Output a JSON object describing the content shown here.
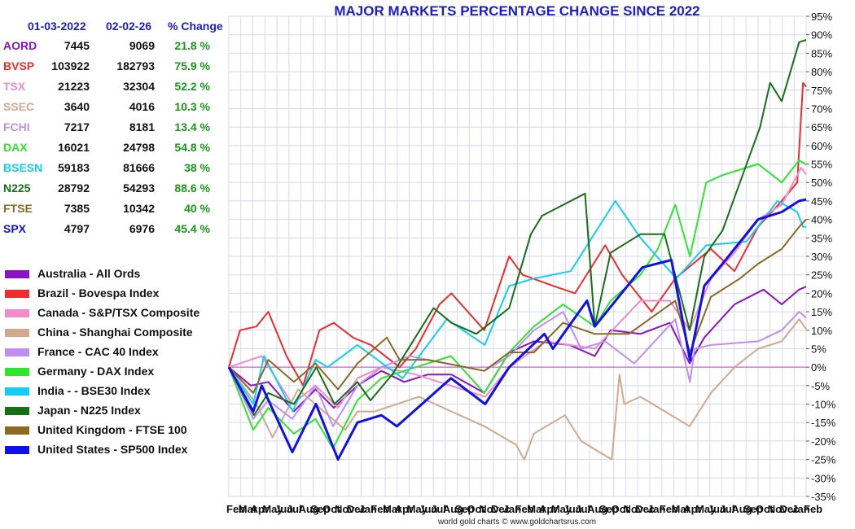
{
  "chart_data": {
    "type": "line",
    "title": "MAJOR MARKETS PERCENTAGE CHANGE SINCE 2022",
    "xlabel": "",
    "ylabel": "",
    "ylim": [
      -35,
      95
    ],
    "y_ticks": [
      "95%",
      "90%",
      "85%",
      "80%",
      "75%",
      "70%",
      "65%",
      "60%",
      "55%",
      "50%",
      "45%",
      "40%",
      "35%",
      "30%",
      "25%",
      "20%",
      "15%",
      "10%",
      "5%",
      "0%",
      "-5%",
      "-10%",
      "-15%",
      "-20%",
      "-25%",
      "-30%",
      "-35%"
    ],
    "x_ticks": [
      "Feb",
      "Mar",
      "Apr",
      "May",
      "Jun",
      "Jul",
      "Aug",
      "Sep",
      "Oct",
      "Nov",
      "Dec",
      "Jan",
      "Feb",
      "Mar",
      "Apr",
      "May",
      "Jun",
      "Jul",
      "Aug",
      "Sep",
      "Oct",
      "Nov",
      "Dec",
      "Jan",
      "Feb",
      "Mar",
      "Apr",
      "May",
      "Jun",
      "Jul",
      "Aug",
      "Sep",
      "Oct",
      "Nov",
      "Dec",
      "Jan",
      "Feb",
      "Mar",
      "Apr",
      "May",
      "Jun",
      "Jul",
      "Aug",
      "Sep",
      "Oct",
      "Nov",
      "Dec",
      "Jan",
      "Feb"
    ],
    "x_range": [
      "2022-01-03",
      "2026-02-02"
    ],
    "grid": true,
    "table_headers": [
      "01-03-2022",
      "02-02-26",
      "% Change"
    ],
    "table": [
      {
        "symbol": "AORD",
        "start": "7445",
        "end": "9069",
        "change": "21.8 %",
        "color": "#8a14c2"
      },
      {
        "symbol": "BVSP",
        "start": "103922",
        "end": "182793",
        "change": "75.9 %",
        "color": "#f02c2c"
      },
      {
        "symbol": "TSX",
        "start": "21223",
        "end": "32304",
        "change": "52.2 %",
        "color": "#f08cc8"
      },
      {
        "symbol": "SSEC",
        "start": "3640",
        "end": "4016",
        "change": "10.3 %",
        "color": "#d2a88e"
      },
      {
        "symbol": "FCHI",
        "start": "7217",
        "end": "8181",
        "change": "13.4 %",
        "color": "#bf8ef0"
      },
      {
        "symbol": "DAX",
        "start": "16021",
        "end": "24798",
        "change": "54.8 %",
        "color": "#2ee62e"
      },
      {
        "symbol": "BSESN",
        "start": "59183",
        "end": "81666",
        "change": "38 %",
        "color": "#14cdf5"
      },
      {
        "symbol": "N225",
        "start": "28792",
        "end": "54293",
        "change": "88.6 %",
        "color": "#167016"
      },
      {
        "symbol": "FTSE",
        "start": "7385",
        "end": "10342",
        "change": "40 %",
        "color": "#8c6a22"
      },
      {
        "symbol": "SPX",
        "start": "4797",
        "end": "6976",
        "change": "45.4 %",
        "color": "#1010e8"
      }
    ],
    "series": [
      {
        "name": "Australia - All Ords",
        "color": "#8a14c2",
        "x": [
          "2022-01-03",
          "2022-03-01",
          "2022-04-15",
          "2022-06-20",
          "2022-08-15",
          "2022-10-01",
          "2022-12-01",
          "2023-02-01",
          "2023-04-01",
          "2023-06-01",
          "2023-08-01",
          "2023-10-25",
          "2023-12-28",
          "2024-03-01",
          "2024-06-01",
          "2024-08-05",
          "2024-09-15",
          "2024-12-01",
          "2025-02-15",
          "2025-04-07",
          "2025-05-15",
          "2025-08-01",
          "2025-10-15",
          "2025-12-01",
          "2026-01-15",
          "2026-02-02"
        ],
        "y": [
          0,
          -5,
          -4,
          -12,
          -6,
          -11,
          -5,
          -1,
          -4,
          -2,
          -2,
          -7,
          4,
          7,
          6,
          3,
          10,
          9,
          12,
          1,
          8,
          17,
          21,
          17,
          21,
          21.8
        ]
      },
      {
        "name": "Brazil - Bovespa Index",
        "color": "#f02c2c",
        "x": [
          "2022-01-03",
          "2022-02-01",
          "2022-03-15",
          "2022-04-15",
          "2022-06-01",
          "2022-07-14",
          "2022-08-25",
          "2022-10-01",
          "2022-11-20",
          "2023-01-05",
          "2023-03-20",
          "2023-05-01",
          "2023-07-01",
          "2023-08-01",
          "2023-10-25",
          "2023-12-28",
          "2024-02-01",
          "2024-04-20",
          "2024-06-15",
          "2024-09-01",
          "2024-10-15",
          "2024-12-30",
          "2025-03-01",
          "2025-06-01",
          "2025-08-01",
          "2025-10-01",
          "2025-12-01",
          "2026-01-10",
          "2026-01-25",
          "2026-02-02"
        ],
        "y": [
          0,
          10,
          11,
          15,
          3,
          -5,
          10,
          12,
          8,
          6,
          0,
          5,
          17,
          20,
          10,
          30,
          25,
          22,
          20,
          33,
          25,
          15,
          24,
          32,
          26,
          38,
          45,
          50,
          77,
          75.9
        ]
      },
      {
        "name": "Canada - S&P/TSX Composite",
        "color": "#f08cc8",
        "x": [
          "2022-01-03",
          "2022-03-29",
          "2022-06-16",
          "2022-08-15",
          "2022-10-12",
          "2022-12-01",
          "2023-02-01",
          "2023-05-01",
          "2023-10-27",
          "2023-12-28",
          "2024-04-01",
          "2024-08-05",
          "2024-12-01",
          "2025-02-15",
          "2025-04-07",
          "2025-06-01",
          "2025-08-01",
          "2025-10-01",
          "2025-12-01",
          "2026-01-20",
          "2026-02-02"
        ],
        "y": [
          0,
          3,
          -10,
          -5,
          -11,
          -3,
          0,
          -2,
          -8,
          0,
          7,
          5,
          18,
          18,
          10,
          24,
          31,
          40,
          44,
          54,
          52.2
        ]
      },
      {
        "name": "China - Shanghai Composite",
        "color": "#d2a88e",
        "x": [
          "2022-01-03",
          "2022-03-15",
          "2022-04-26",
          "2022-07-01",
          "2022-10-31",
          "2022-12-01",
          "2023-01-15",
          "2023-05-09",
          "2023-08-01",
          "2023-10-25",
          "2024-01-15",
          "2024-02-05",
          "2024-03-01",
          "2024-05-20",
          "2024-07-01",
          "2024-09-18",
          "2024-10-08",
          "2024-10-20",
          "2024-12-01",
          "2025-04-07",
          "2025-06-01",
          "2025-08-01",
          "2025-10-01",
          "2025-12-01",
          "2026-01-15",
          "2026-02-02"
        ],
        "y": [
          0,
          -10,
          -19,
          -6,
          -17,
          -12,
          -12,
          -8,
          -12,
          -16,
          -21,
          -25,
          -18,
          -13,
          -20,
          -25,
          -2,
          -10,
          -8,
          -16,
          -7,
          0,
          5,
          7,
          13,
          10.3
        ]
      },
      {
        "name": "France - CAC 40 Index",
        "color": "#bf8ef0",
        "x": [
          "2022-01-03",
          "2022-03-07",
          "2022-04-15",
          "2022-06-16",
          "2022-08-15",
          "2022-09-29",
          "2022-12-01",
          "2023-02-01",
          "2023-04-15",
          "2023-06-01",
          "2023-10-25",
          "2023-12-28",
          "2024-03-01",
          "2024-05-15",
          "2024-07-01",
          "2024-09-01",
          "2024-11-15",
          "2025-03-01",
          "2025-04-08",
          "2025-04-20",
          "2025-06-01",
          "2025-10-01",
          "2025-12-01",
          "2026-01-15",
          "2026-02-02"
        ],
        "y": [
          0,
          -14,
          -9,
          -14,
          -5,
          -16,
          -5,
          0,
          3,
          2,
          -1,
          3,
          10,
          15,
          5,
          7,
          1,
          13,
          -4,
          5,
          6,
          7,
          10,
          15,
          13.4
        ]
      },
      {
        "name": "Germany - DAX Index",
        "color": "#2ee62e",
        "x": [
          "2022-01-03",
          "2022-03-07",
          "2022-04-15",
          "2022-06-20",
          "2022-08-15",
          "2022-09-29",
          "2022-12-01",
          "2023-02-01",
          "2023-04-01",
          "2023-07-31",
          "2023-10-25",
          "2023-12-28",
          "2024-03-01",
          "2024-05-15",
          "2024-08-05",
          "2024-09-15",
          "2024-12-01",
          "2025-01-15",
          "2025-03-01",
          "2025-04-08",
          "2025-05-20",
          "2025-07-01",
          "2025-10-01",
          "2025-12-01",
          "2026-01-15",
          "2026-02-02"
        ],
        "y": [
          0,
          -17,
          -11,
          -18,
          -14,
          -22,
          -9,
          -3,
          -1,
          3,
          -7,
          4,
          11,
          17,
          11,
          18,
          25,
          32,
          44,
          30,
          50,
          52,
          55,
          50,
          56,
          54.8
        ]
      },
      {
        "name": "India -  - BSE30 Index",
        "color": "#14cdf5",
        "x": [
          "2022-01-03",
          "2022-03-07",
          "2022-04-04",
          "2022-06-17",
          "2022-08-15",
          "2022-09-15",
          "2022-12-01",
          "2023-03-28",
          "2023-07-20",
          "2023-10-26",
          "2023-12-28",
          "2024-03-01",
          "2024-06-04",
          "2024-09-27",
          "2024-12-01",
          "2025-03-04",
          "2025-05-20",
          "2025-09-01",
          "2025-11-20",
          "2026-01-10",
          "2026-01-25",
          "2026-02-02"
        ],
        "y": [
          0,
          -10,
          3,
          -12,
          2,
          0,
          6,
          -3,
          13,
          6,
          22,
          24,
          26,
          45,
          35,
          24,
          33,
          34,
          45,
          42,
          38,
          38
        ]
      },
      {
        "name": "Japan - N225 Index",
        "color": "#167016",
        "x": [
          "2022-01-03",
          "2022-03-09",
          "2022-04-15",
          "2022-06-20",
          "2022-08-17",
          "2022-10-03",
          "2022-12-01",
          "2023-01-04",
          "2023-03-01",
          "2023-06-16",
          "2023-08-01",
          "2023-10-04",
          "2023-12-28",
          "2024-02-22",
          "2024-03-22",
          "2024-07-11",
          "2024-08-05",
          "2024-09-15",
          "2024-12-01",
          "2025-02-01",
          "2025-04-07",
          "2025-05-15",
          "2025-07-01",
          "2025-08-15",
          "2025-10-06",
          "2025-11-01",
          "2025-12-01",
          "2026-01-15",
          "2026-02-02"
        ],
        "y": [
          0,
          -13,
          -7,
          -10,
          0,
          -10,
          -4,
          -9,
          -2,
          16,
          12,
          9,
          16,
          36,
          41,
          47,
          11,
          31,
          36,
          36,
          10,
          30,
          37,
          50,
          65,
          77,
          72,
          88,
          88.6
        ]
      },
      {
        "name": "United Kingdom - FTSE 100",
        "color": "#8c6a22",
        "x": [
          "2022-01-03",
          "2022-03-07",
          "2022-04-15",
          "2022-06-20",
          "2022-08-15",
          "2022-10-12",
          "2022-12-01",
          "2023-02-15",
          "2023-03-20",
          "2023-06-01",
          "2023-10-25",
          "2023-12-28",
          "2024-03-01",
          "2024-05-15",
          "2024-08-05",
          "2024-11-01",
          "2025-03-01",
          "2025-04-08",
          "2025-06-01",
          "2025-08-15",
          "2025-10-01",
          "2025-12-01",
          "2026-01-15",
          "2026-02-02"
        ],
        "y": [
          0,
          -7,
          2,
          -4,
          1,
          -6,
          1,
          8,
          2,
          2,
          -1,
          4,
          4,
          12,
          9,
          9,
          18,
          4,
          19,
          24,
          28,
          32,
          38,
          40
        ]
      },
      {
        "name": "United States - SP500 Index",
        "color": "#1010e8",
        "x": [
          "2022-01-03",
          "2022-03-07",
          "2022-03-29",
          "2022-06-16",
          "2022-08-16",
          "2022-10-12",
          "2022-12-01",
          "2023-02-01",
          "2023-03-13",
          "2023-07-31",
          "2023-10-27",
          "2023-12-28",
          "2024-03-28",
          "2024-04-19",
          "2024-07-16",
          "2024-08-05",
          "2024-12-06",
          "2025-02-19",
          "2025-04-08",
          "2025-05-15",
          "2025-07-01",
          "2025-10-01",
          "2025-12-01",
          "2026-01-15",
          "2026-02-02"
        ],
        "y": [
          0,
          -12,
          -5,
          -23,
          -10,
          -25,
          -15,
          -13,
          -16,
          -3,
          -10,
          0,
          9,
          5,
          18,
          11,
          27,
          29,
          2,
          22,
          28,
          40,
          42,
          45,
          45.4
        ]
      }
    ]
  },
  "footer": "world gold charts © www.goldchartsrus.com"
}
